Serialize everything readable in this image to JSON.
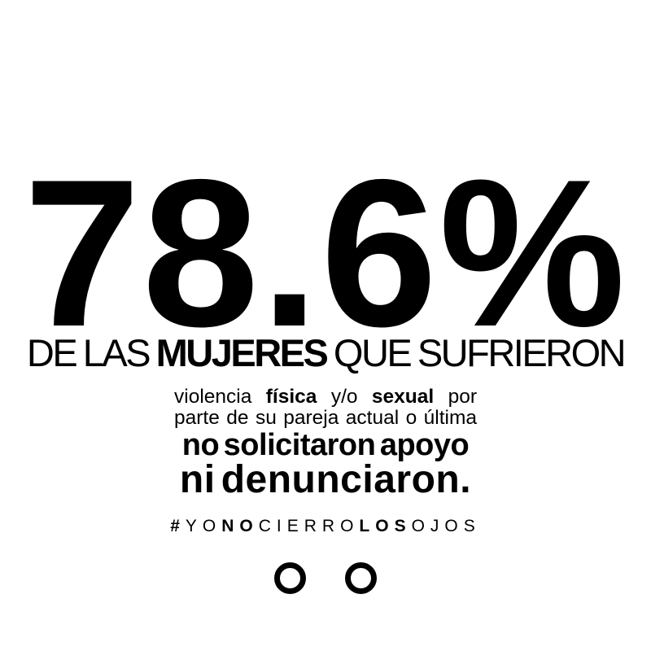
{
  "poster": {
    "background_color": "#ffffff",
    "text_color": "#000000",
    "stat_value": "78.6%",
    "headline": {
      "pre": "DE LAS ",
      "emphasis": "MUJERES",
      "post": " QUE SUFRIERON"
    },
    "paragraph": {
      "line1_segments": [
        {
          "text": "violencia ",
          "bold": false
        },
        {
          "text": "física",
          "bold": true
        },
        {
          "text": " y/o ",
          "bold": false
        },
        {
          "text": "sexual",
          "bold": true
        },
        {
          "text": " por",
          "bold": false
        }
      ],
      "line2": "parte de su pareja actual o última"
    },
    "statement": {
      "line1": "no solicitaron apoyo",
      "line2": "ni denunciaron."
    },
    "hashtag_segments": [
      {
        "text": "#",
        "bold": true
      },
      {
        "text": "YO",
        "bold": false
      },
      {
        "text": "NO",
        "bold": true
      },
      {
        "text": "CIERRO",
        "bold": false
      },
      {
        "text": "LOS",
        "bold": true
      },
      {
        "text": "OJOS",
        "bold": false
      }
    ],
    "icons": {
      "eyes": "open-eyes-icon"
    }
  }
}
